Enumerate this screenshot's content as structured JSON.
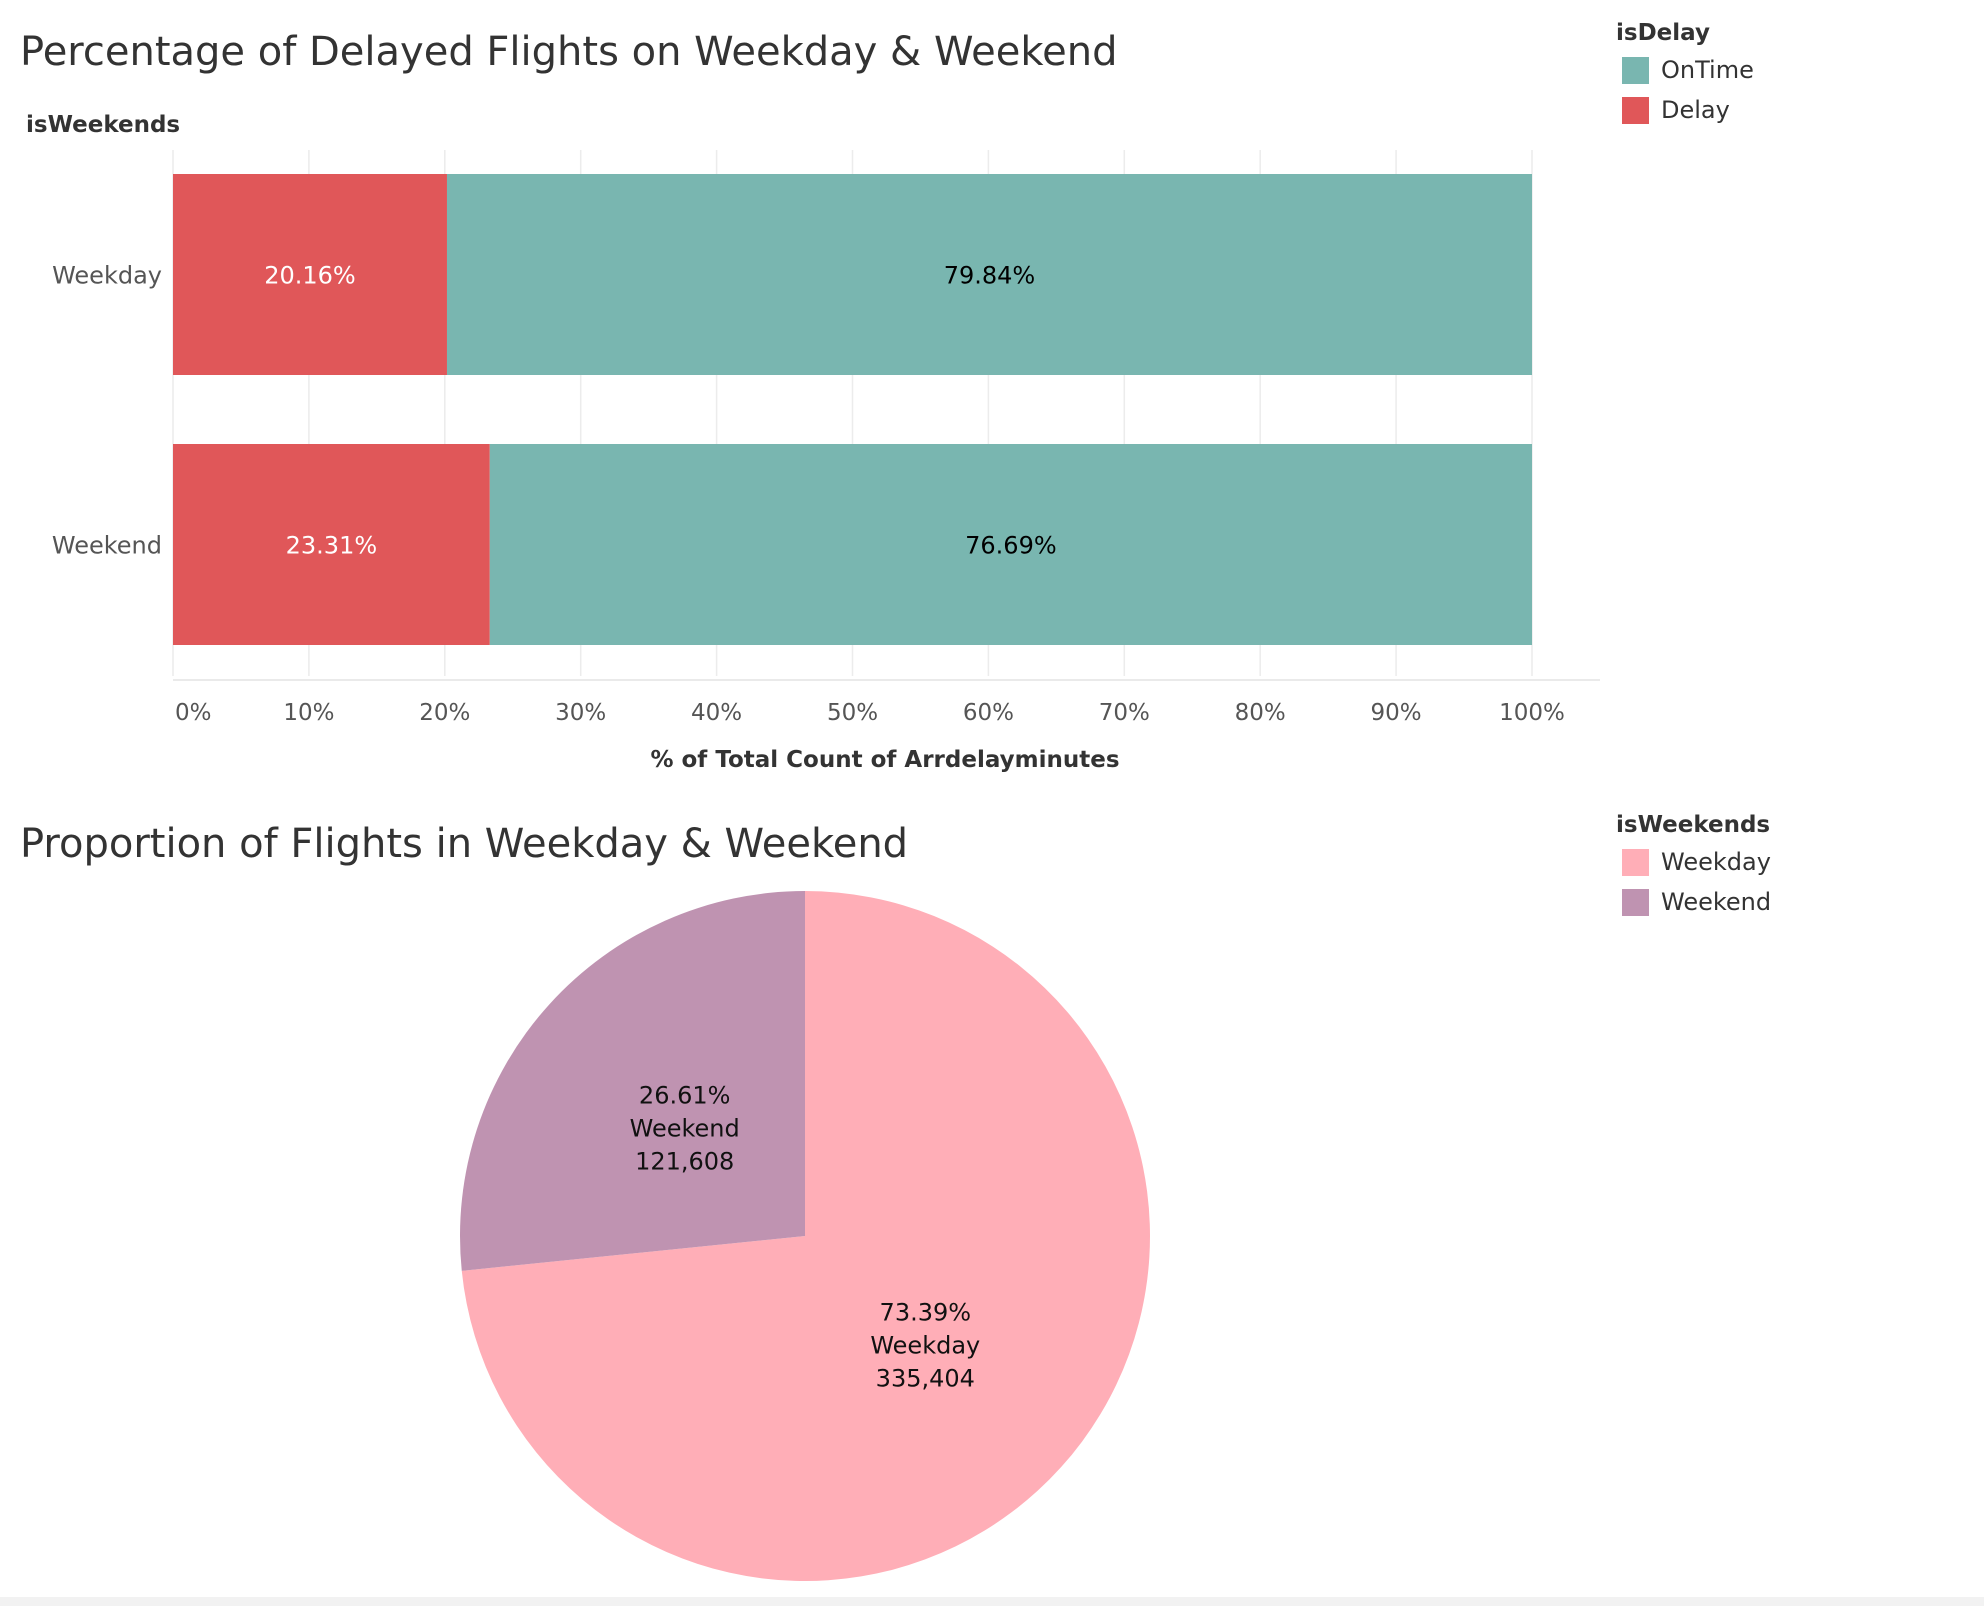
{
  "chart_data": [
    {
      "type": "bar",
      "orientation": "horizontal",
      "stacked": true,
      "title": "Percentage of Delayed Flights on Weekday & Weekend",
      "row_header": "isWeekends",
      "categories": [
        "Weekday",
        "Weekend"
      ],
      "series": [
        {
          "name": "Delay",
          "color": "#e05759",
          "values": [
            20.16,
            23.31
          ],
          "labels": [
            "20.16%",
            "23.31%"
          ],
          "label_color": "#ffffff"
        },
        {
          "name": "OnTime",
          "color": "#79b6b0",
          "values": [
            79.84,
            76.69
          ],
          "labels": [
            "79.84%",
            "76.69%"
          ],
          "label_color": "#000000"
        }
      ],
      "xlabel": "% of Total Count of Arrdelayminutes",
      "xlim": [
        0,
        100
      ],
      "xticks": [
        0,
        10,
        20,
        30,
        40,
        50,
        60,
        70,
        80,
        90,
        100
      ],
      "xtick_labels": [
        "0%",
        "10%",
        "20%",
        "30%",
        "40%",
        "50%",
        "60%",
        "70%",
        "80%",
        "90%",
        "100%"
      ],
      "grid": true,
      "legend": {
        "title": "isDelay",
        "placement": "top-right",
        "items": [
          {
            "label": "OnTime",
            "color": "#79b6b0"
          },
          {
            "label": "Delay",
            "color": "#e05759"
          }
        ]
      }
    },
    {
      "type": "pie",
      "title": "Proportion of Flights in Weekday & Weekend",
      "slices": [
        {
          "name": "Weekday",
          "value": 335404,
          "percent_label": "73.39%",
          "value_label": "335,404",
          "color": "#ffaeb7"
        },
        {
          "name": "Weekend",
          "value": 121608,
          "percent_label": "26.61%",
          "value_label": "121,608",
          "color": "#bf93b1"
        }
      ],
      "legend": {
        "title": "isWeekends",
        "placement": "top-right",
        "items": [
          {
            "label": "Weekday",
            "color": "#ffaeb7"
          },
          {
            "label": "Weekend",
            "color": "#bf93b1"
          }
        ]
      }
    }
  ]
}
